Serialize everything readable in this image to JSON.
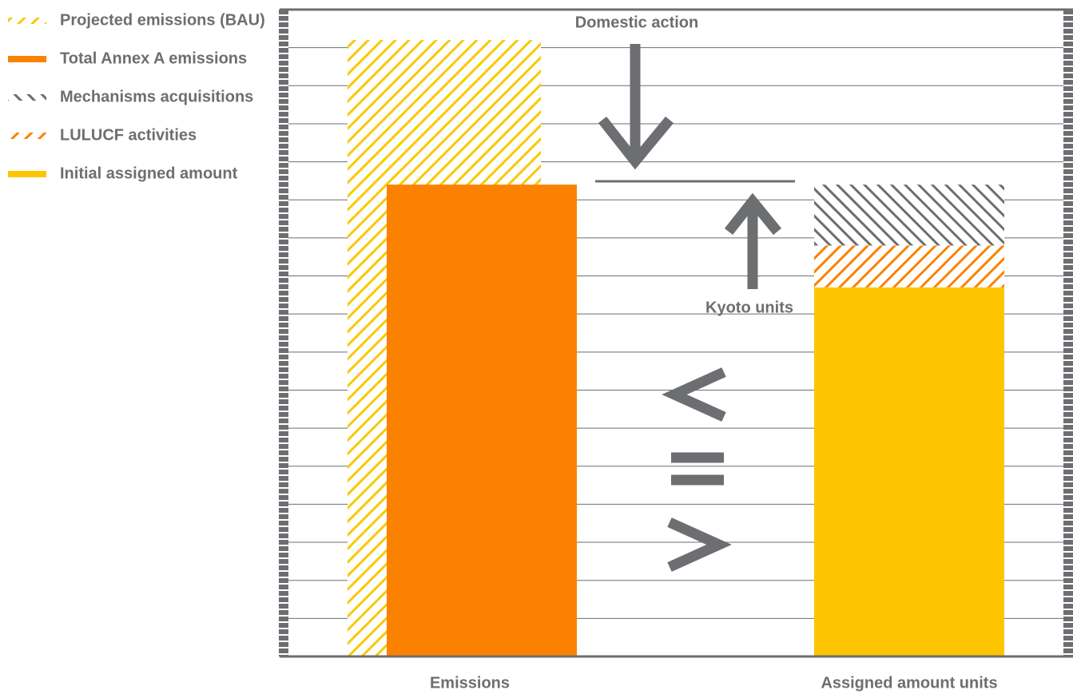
{
  "chart_data": {
    "type": "bar",
    "categories": [
      "Emissions",
      "Assigned amount units"
    ],
    "series": [
      {
        "name": "Projected emissions (BAU)",
        "color": "#f9c900",
        "pattern": "hatch",
        "values": [
          16.2,
          null
        ]
      },
      {
        "name": "Total Annex A emissions",
        "color": "#fb8200",
        "pattern": "solid",
        "values": [
          12.4,
          null
        ]
      },
      {
        "name": "Mechanisms acquisitions",
        "color": "#6d6e71",
        "pattern": "hatch",
        "values": [
          null,
          1.6
        ]
      },
      {
        "name": "LULUCF activities",
        "color": "#fb8200",
        "pattern": "hatch",
        "values": [
          null,
          1.1
        ]
      },
      {
        "name": "Initial assigned amount",
        "color": "#fdc500",
        "pattern": "solid",
        "values": [
          null,
          9.7
        ]
      }
    ],
    "annotations": [
      "Domestic action",
      "Kyoto units"
    ],
    "ylim": [
      0,
      17
    ],
    "yticks": [
      1,
      2,
      3,
      4,
      5,
      6,
      7,
      8,
      9,
      10,
      11,
      12,
      13,
      14,
      15,
      16
    ],
    "grid": true
  }
}
